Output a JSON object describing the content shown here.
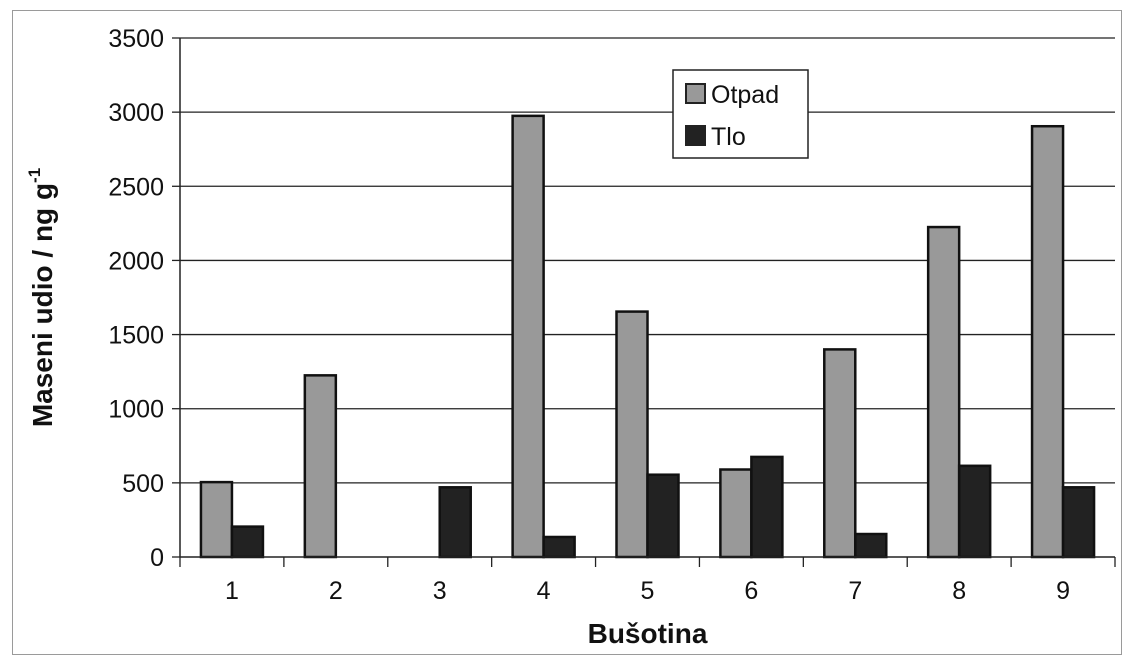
{
  "chart_data": {
    "type": "bar",
    "categories": [
      "1",
      "2",
      "3",
      "4",
      "5",
      "6",
      "7",
      "8",
      "9"
    ],
    "series": [
      {
        "name": "Otpad",
        "values": [
          505,
          1225,
          0,
          2975,
          1655,
          590,
          1400,
          2225,
          2905
        ],
        "color": "#999999"
      },
      {
        "name": "Tlo",
        "values": [
          205,
          0,
          470,
          135,
          555,
          675,
          155,
          615,
          470
        ],
        "color": "#222222"
      }
    ],
    "xlabel": "Bušotina",
    "ylabel": "Maseni udio / ng g",
    "ylabel_sup": "-1",
    "ylim": [
      0,
      3500
    ],
    "yticks": [
      "0",
      "500",
      "1000",
      "1500",
      "2000",
      "2500",
      "3000",
      "3500"
    ],
    "grid": true,
    "legend_position": "top-center"
  }
}
